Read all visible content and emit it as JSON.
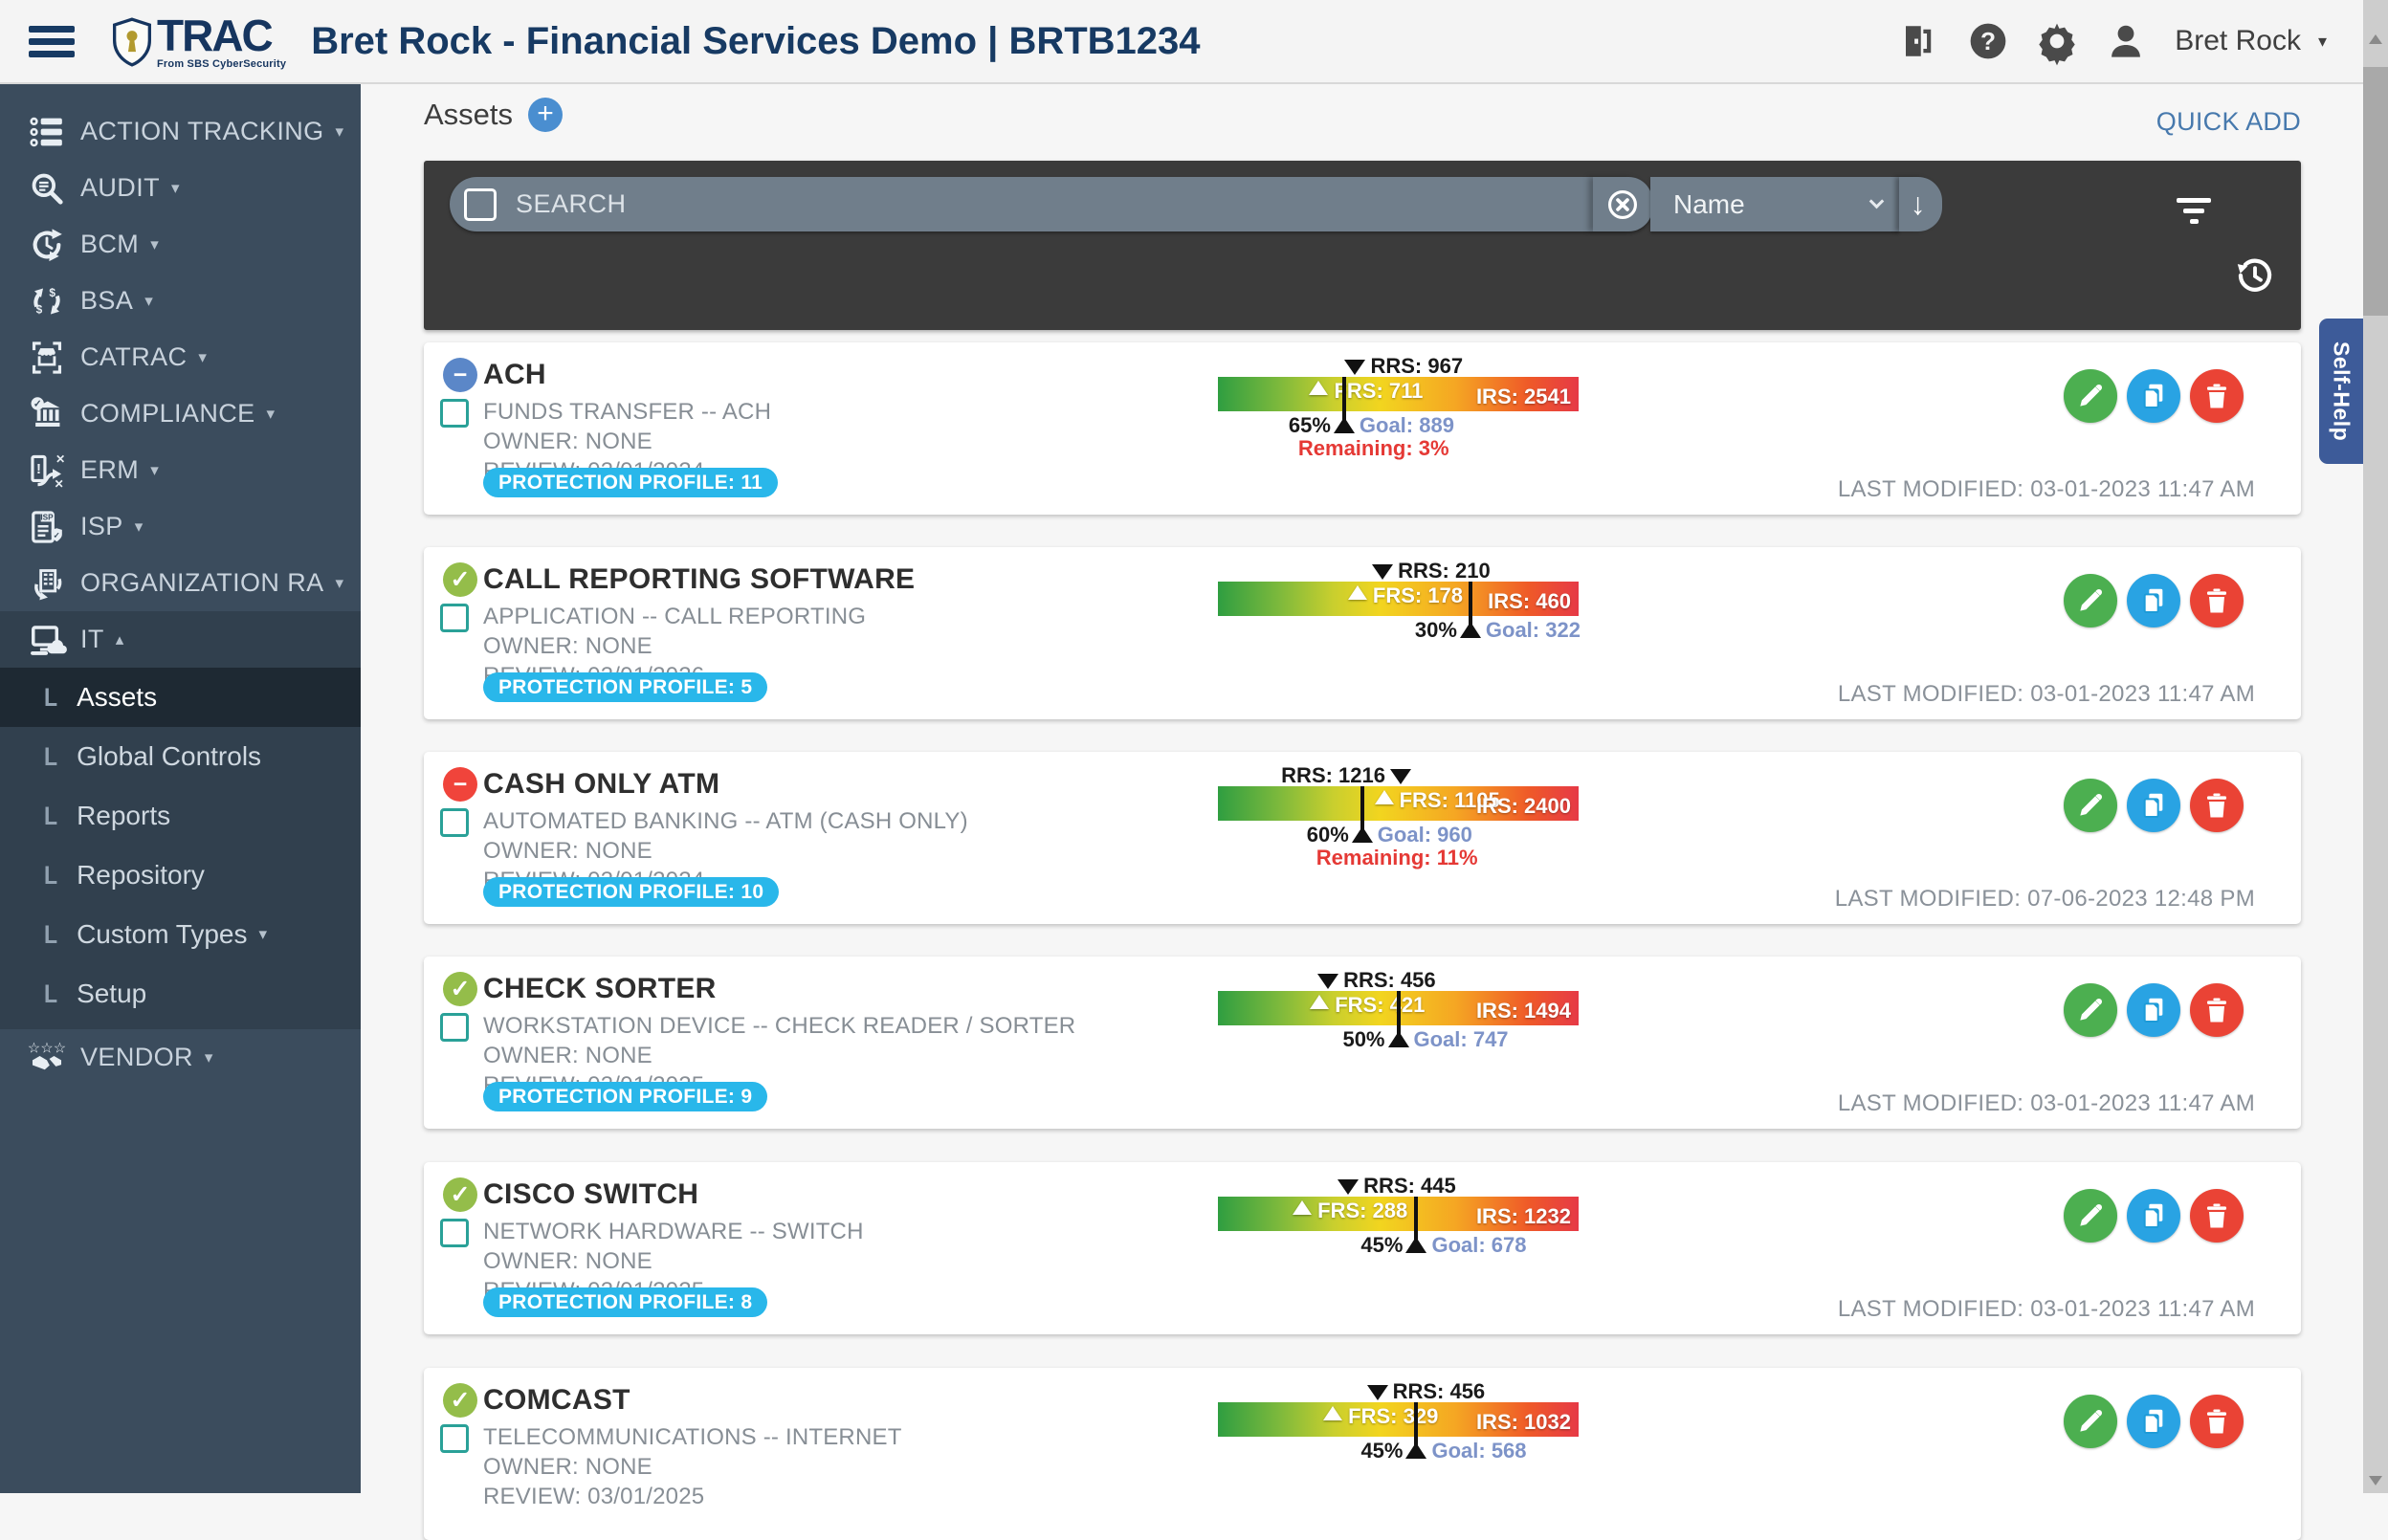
{
  "colors": {
    "brand_navy": "#16355f",
    "sidebar_bg": "#3b4c5d",
    "sidebar_selected": "#1e2933",
    "search_panel": "#3b3b3b",
    "pill_blue": "#29b7ea",
    "edit_green": "#4caf50",
    "copy_blue": "#29a3e3",
    "delete_red": "#ea4335",
    "goal_blue": "#7d93c8",
    "remaining_red": "#e53935",
    "selfhelp_blue": "#3d5b99"
  },
  "header": {
    "app_name": "TRAC",
    "app_tagline": "From SBS CyberSecurity",
    "title": "Bret Rock - Financial Services Demo | BRTB1234",
    "user_name": "Bret Rock",
    "user_caret": "▾"
  },
  "sidebar": {
    "branch_glyph": "L",
    "items": [
      {
        "label": "ACTION TRACKING",
        "icon": "checklist-icon",
        "caret": "▾"
      },
      {
        "label": "AUDIT",
        "icon": "audit-magnifier-icon",
        "caret": "▾"
      },
      {
        "label": "BCM",
        "icon": "continuity-cycle-icon",
        "caret": "▾"
      },
      {
        "label": "BSA",
        "icon": "money-cycle-icon",
        "caret": "▾"
      },
      {
        "label": "CATRAC",
        "icon": "storefront-scan-icon",
        "caret": "▾"
      },
      {
        "label": "COMPLIANCE",
        "icon": "bank-check-icon",
        "caret": "▾"
      },
      {
        "label": "ERM",
        "icon": "risk-route-icon",
        "caret": "▾"
      },
      {
        "label": "ISP",
        "icon": "isp-document-icon",
        "caret": "▾"
      },
      {
        "label": "ORGANIZATION RA",
        "icon": "org-sync-icon",
        "caret": "▾"
      },
      {
        "label": "IT",
        "icon": "it-devices-icon",
        "caret": "▴",
        "expanded": true,
        "children": [
          {
            "label": "Assets",
            "selected": true
          },
          {
            "label": "Global Controls"
          },
          {
            "label": "Reports"
          },
          {
            "label": "Repository"
          },
          {
            "label": "Custom Types",
            "caret": "▾"
          },
          {
            "label": "Setup"
          }
        ]
      },
      {
        "label": "VENDOR",
        "icon": "vendor-handshake-icon",
        "caret": "▾"
      }
    ]
  },
  "main": {
    "page_title": "Assets",
    "add_icon": "+",
    "quick_add_label": "QUICK ADD",
    "search": {
      "placeholder": "SEARCH",
      "sort_field": "Name",
      "sort_arrow": "↓"
    },
    "assets": [
      {
        "name": "ACH",
        "status": "blue-minus",
        "type": "FUNDS TRANSFER -- ACH",
        "owner": "OWNER: NONE",
        "review": "REVIEW: 03/01/2024",
        "protection_profile": "PROTECTION PROFILE: 11",
        "rrs": 967,
        "frs": 711,
        "irs": 2541,
        "goal": 889,
        "rrs_label": "RRS: 967",
        "frs_label": "FRS: 711",
        "irs_label": "IRS: 2541",
        "goal_pct": "65%",
        "goal_label": "Goal: 889",
        "remaining": "Remaining: 3%",
        "last_modified": "LAST MODIFIED: 03-01-2023 11:47 AM"
      },
      {
        "name": "CALL REPORTING SOFTWARE",
        "status": "green-check",
        "type": "APPLICATION -- CALL REPORTING",
        "owner": "OWNER: NONE",
        "review": "REVIEW: 03/01/2026",
        "protection_profile": "PROTECTION PROFILE: 5",
        "rrs": 210,
        "frs": 178,
        "irs": 460,
        "goal": 322,
        "rrs_label": "RRS: 210",
        "frs_label": "FRS: 178",
        "irs_label": "IRS: 460",
        "goal_pct": "30%",
        "goal_label": "Goal: 322",
        "remaining": null,
        "last_modified": "LAST MODIFIED: 03-01-2023 11:47 AM"
      },
      {
        "name": "CASH ONLY ATM",
        "status": "red-minus",
        "type": "AUTOMATED BANKING -- ATM (CASH ONLY)",
        "owner": "OWNER: NONE",
        "review": "REVIEW: 03/01/2024",
        "protection_profile": "PROTECTION PROFILE: 10",
        "rrs": 1216,
        "frs": 1105,
        "irs": 2400,
        "goal": 960,
        "rrs_label": "RRS: 1216",
        "frs_label": "FRS: 1105",
        "irs_label": "IRS: 2400",
        "goal_pct": "60%",
        "goal_label": "Goal: 960",
        "remaining": "Remaining: 11%",
        "last_modified": "LAST MODIFIED: 07-06-2023 12:48 PM"
      },
      {
        "name": "CHECK SORTER",
        "status": "green-check",
        "type": "WORKSTATION DEVICE -- CHECK READER / SORTER",
        "owner": "OWNER: NONE",
        "review": "REVIEW: 03/01/2025",
        "protection_profile": "PROTECTION PROFILE: 9",
        "rrs": 456,
        "frs": 421,
        "irs": 1494,
        "goal": 747,
        "rrs_label": "RRS: 456",
        "frs_label": "FRS: 421",
        "irs_label": "IRS: 1494",
        "goal_pct": "50%",
        "goal_label": "Goal: 747",
        "remaining": null,
        "last_modified": "LAST MODIFIED: 03-01-2023 11:47 AM"
      },
      {
        "name": "CISCO SWITCH",
        "status": "green-check",
        "type": "NETWORK HARDWARE -- SWITCH",
        "owner": "OWNER: NONE",
        "review": "REVIEW: 03/01/2025",
        "protection_profile": "PROTECTION PROFILE: 8",
        "rrs": 445,
        "frs": 288,
        "irs": 1232,
        "goal": 678,
        "rrs_label": "RRS: 445",
        "frs_label": "FRS: 288",
        "irs_label": "IRS: 1232",
        "goal_pct": "45%",
        "goal_label": "Goal: 678",
        "remaining": null,
        "last_modified": "LAST MODIFIED: 03-01-2023 11:47 AM"
      },
      {
        "name": "COMCAST",
        "status": "green-check",
        "type": "TELECOMMUNICATIONS -- INTERNET",
        "owner": "OWNER: NONE",
        "review": "REVIEW: 03/01/2025",
        "protection_profile": null,
        "rrs": 456,
        "frs": 329,
        "irs": 1032,
        "goal": 568,
        "rrs_label": "RRS: 456",
        "frs_label": "FRS: 329",
        "irs_label": "IRS: 1032",
        "goal_pct": "45%",
        "goal_label": "Goal: 568",
        "remaining": null,
        "last_modified": null
      }
    ]
  },
  "self_help_label": "Self-Help"
}
